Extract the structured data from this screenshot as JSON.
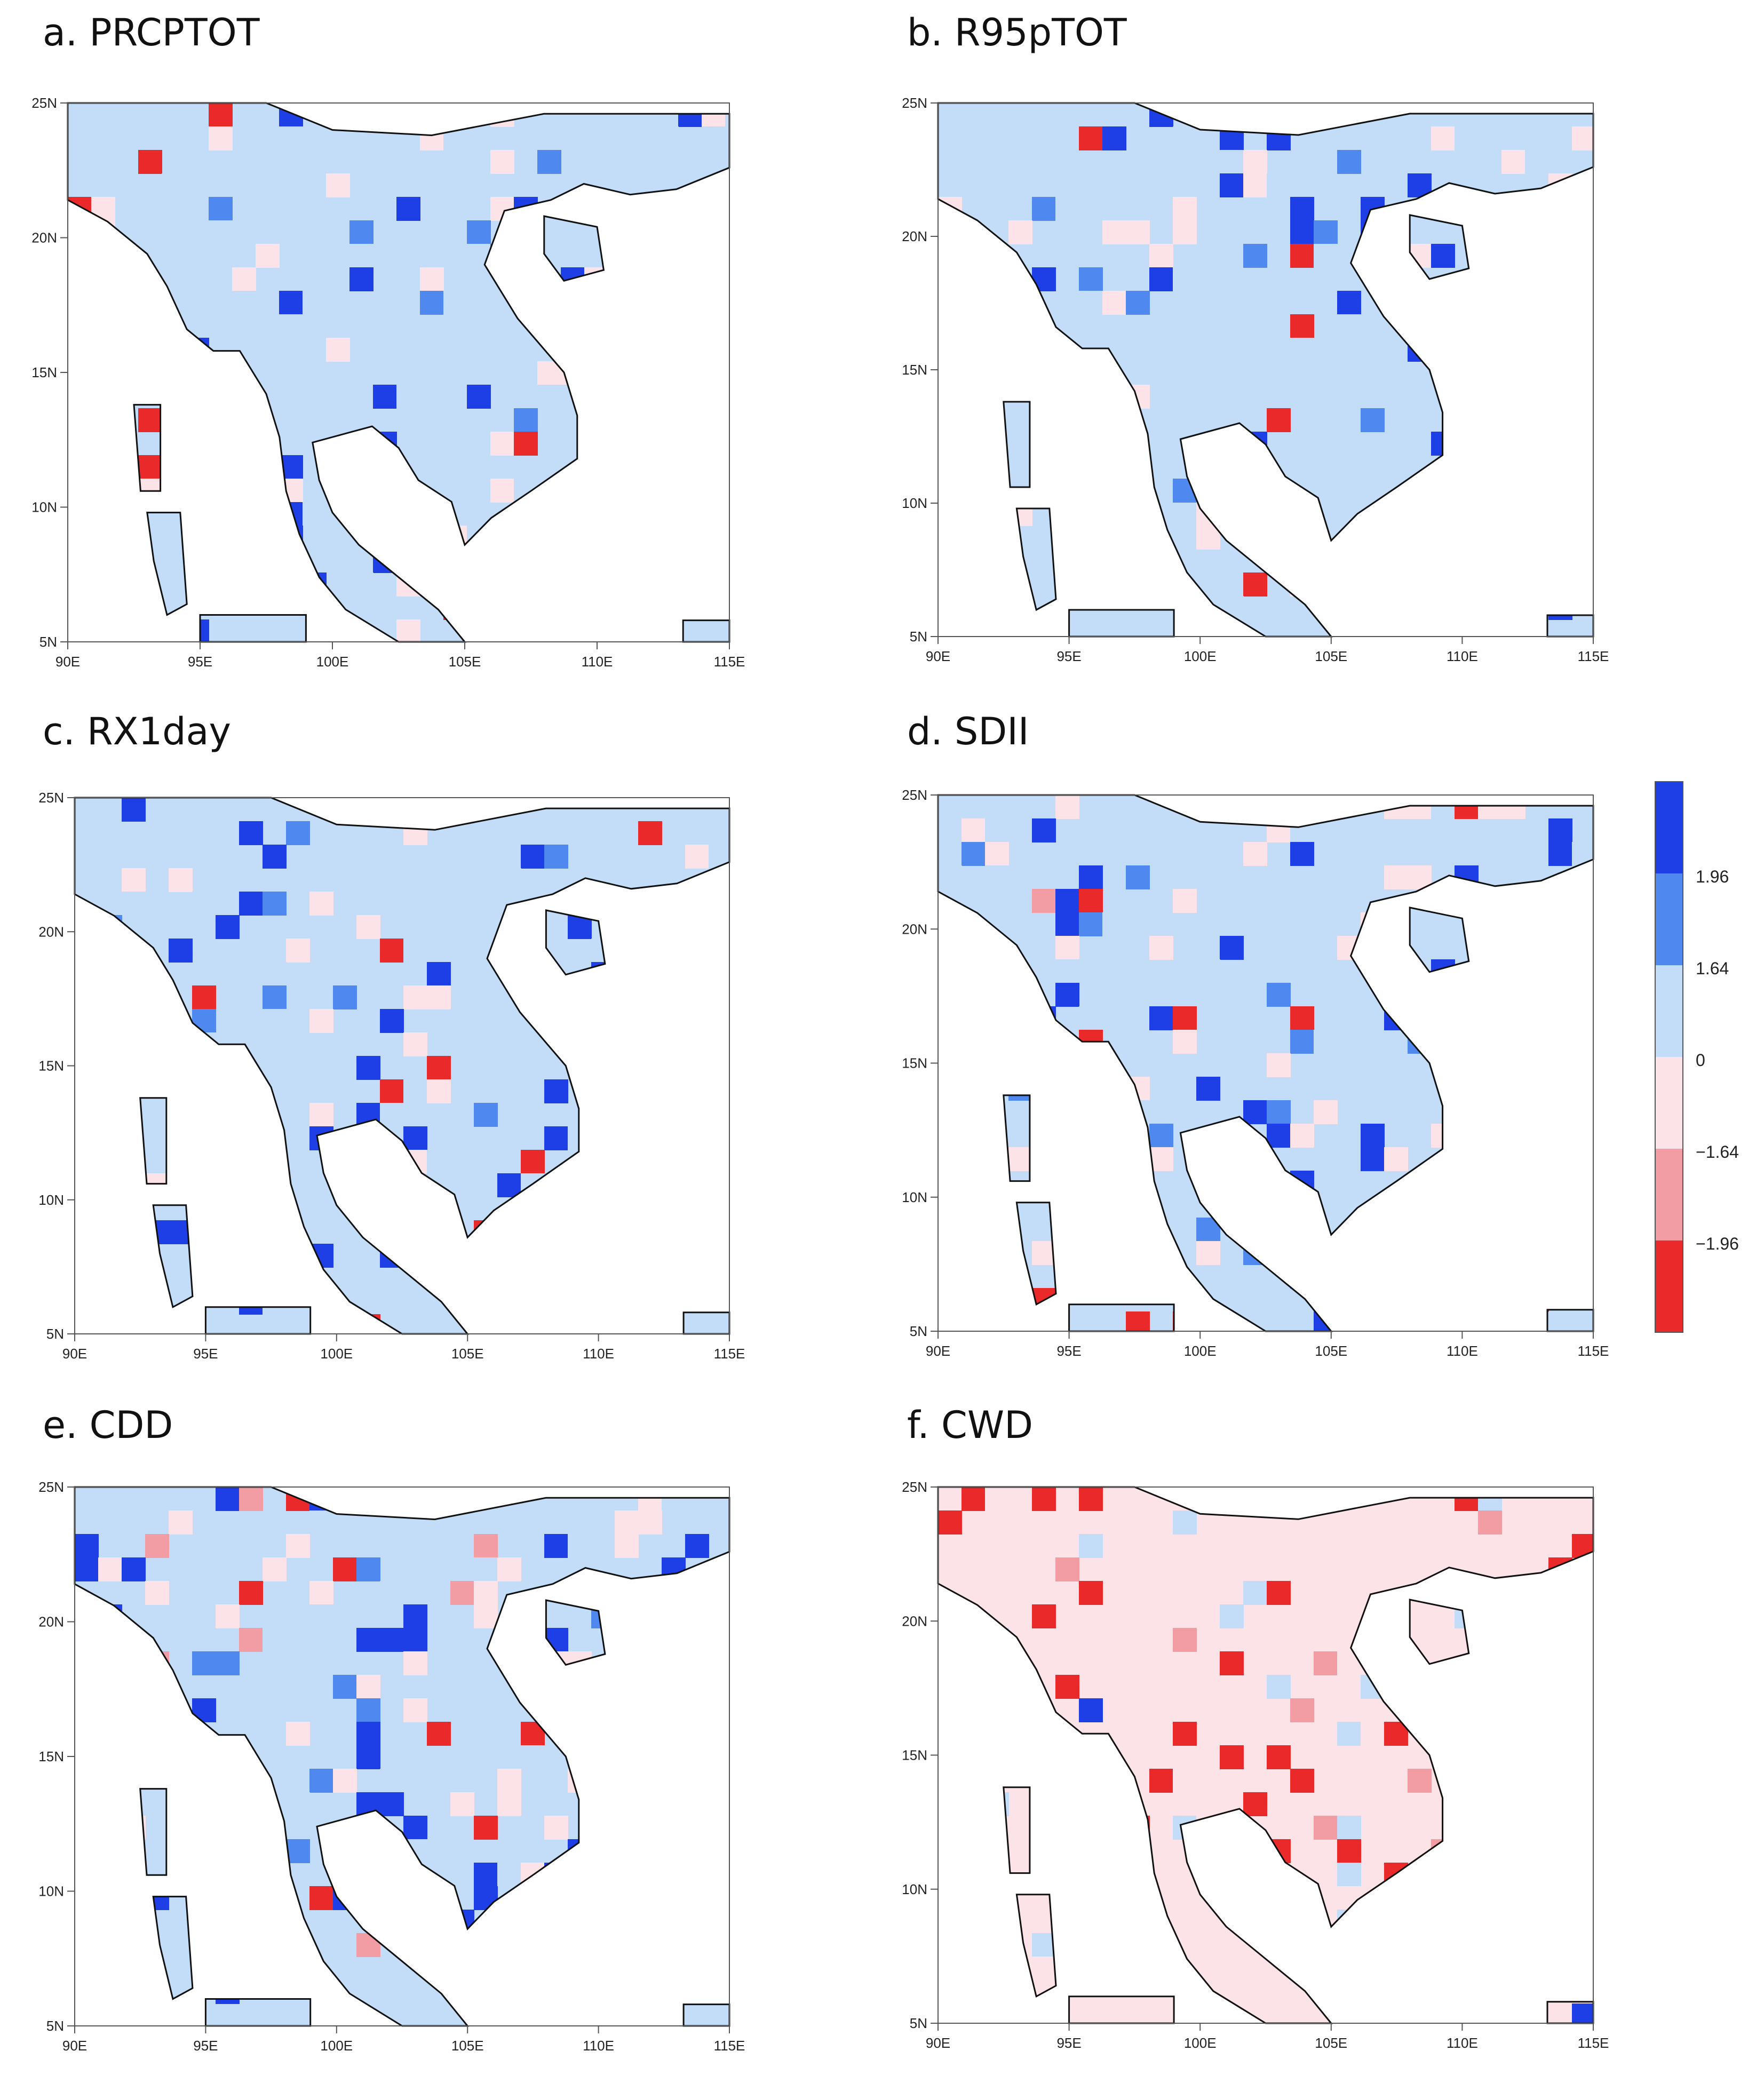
{
  "colors": {
    "sig_pos": "#1f3fe6",
    "pos_164": "#4f88ee",
    "pos": "#c3ddf8",
    "neg": "#fbe3e7",
    "neg_164": "#f29ca4",
    "sig_neg": "#ea2a2a"
  },
  "map_axes": {
    "xlim": [
      90,
      115
    ],
    "ylim": [
      5,
      25
    ],
    "x_ticks": [
      "90E",
      "95E",
      "100E",
      "105E",
      "110E",
      "115E"
    ],
    "y_ticks": [
      "5N",
      "10N",
      "15N",
      "20N",
      "25N"
    ]
  },
  "legend": {
    "labels": [
      "1.96",
      "1.64",
      "0",
      "−1.64",
      "−1.96"
    ]
  },
  "panels": [
    {
      "id": "a",
      "title": "a. PRCPTOT"
    },
    {
      "id": "b",
      "title": "b. R95pTOT"
    },
    {
      "id": "c",
      "title": "c. RX1day"
    },
    {
      "id": "d",
      "title": "d. SDII"
    },
    {
      "id": "e",
      "title": "e. CDD"
    },
    {
      "id": "f",
      "title": "f. CWD"
    }
  ]
}
